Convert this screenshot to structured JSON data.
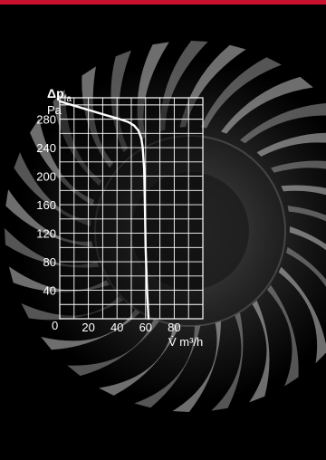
{
  "colors": {
    "top_bar": "#c8102e",
    "background": "#000000",
    "grid": "#ffffff",
    "curve": "#ffffff",
    "plot_fill": "#000000"
  },
  "background_image": "radial-fan-impeller-photo",
  "chart_data": {
    "type": "line",
    "title": "",
    "ylabel_main": "Δp",
    "ylabel_sub": "fa",
    "yunit": "Pa",
    "xlabel": "V̇ m³/h",
    "xlim": [
      0,
      100
    ],
    "ylim": [
      0,
      310
    ],
    "x_ticks": [
      {
        "value": 0,
        "label": "0"
      },
      {
        "value": 20,
        "label": "20"
      },
      {
        "value": 40,
        "label": "40"
      },
      {
        "value": 60,
        "label": "60"
      },
      {
        "value": 80,
        "label": "80"
      }
    ],
    "y_ticks": [
      {
        "value": 40,
        "label": "40"
      },
      {
        "value": 80,
        "label": "80"
      },
      {
        "value": 120,
        "label": "120"
      },
      {
        "value": 160,
        "label": "160"
      },
      {
        "value": 200,
        "label": "200"
      },
      {
        "value": 240,
        "label": "240"
      },
      {
        "value": 280,
        "label": "280"
      }
    ],
    "origin_label": "0",
    "grid": true,
    "x_grid_step": 10,
    "y_grid_step": 20,
    "series": [
      {
        "x": [
          0,
          10,
          20,
          30,
          37,
          42,
          48,
          52,
          55,
          57,
          58,
          59,
          59.5,
          60,
          61,
          62
        ],
        "y": [
          305,
          299,
          293,
          287,
          283,
          280,
          276,
          271,
          264,
          253,
          240,
          210,
          160,
          100,
          40,
          0
        ]
      }
    ]
  }
}
